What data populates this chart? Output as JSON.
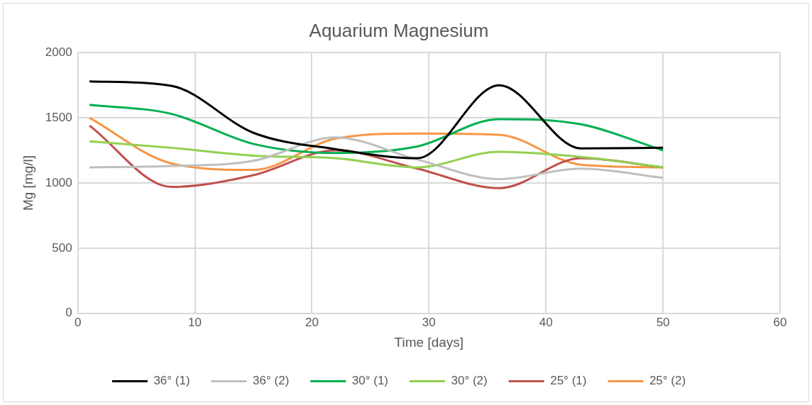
{
  "chart_data": {
    "type": "line",
    "title": "Aquarium Magnesium",
    "xlabel": "Time [days]",
    "ylabel": "Mg [mg/l]",
    "x": [
      1,
      8,
      15,
      22,
      29,
      36,
      43,
      50
    ],
    "series": [
      {
        "name": "36° (1)",
        "color": "#000000",
        "values": [
          1780,
          1745,
          1385,
          1260,
          1190,
          1750,
          1265,
          1270
        ]
      },
      {
        "name": "36° (2)",
        "color": "#bfbfbf",
        "values": [
          1120,
          1130,
          1170,
          1350,
          1180,
          1030,
          1110,
          1040
        ]
      },
      {
        "name": "30° (1)",
        "color": "#00b050",
        "values": [
          1600,
          1530,
          1300,
          1230,
          1280,
          1490,
          1450,
          1250
        ]
      },
      {
        "name": "30° (2)",
        "color": "#92d050",
        "values": [
          1320,
          1270,
          1210,
          1190,
          1120,
          1240,
          1200,
          1120
        ]
      },
      {
        "name": "25° (1)",
        "color": "#c0504d",
        "values": [
          1440,
          970,
          1060,
          1250,
          1110,
          960,
          1190,
          1120
        ]
      },
      {
        "name": "25° (2)",
        "color": "#f79646",
        "values": [
          1500,
          1150,
          1100,
          1340,
          1380,
          1370,
          1140,
          1120
        ]
      }
    ],
    "xlim": [
      0,
      60
    ],
    "xticks": [
      0,
      10,
      20,
      30,
      40,
      50,
      60
    ],
    "ylim": [
      0,
      2000
    ],
    "yticks": [
      0,
      500,
      1000,
      1500,
      2000
    ],
    "grid": true,
    "legend": "bottom",
    "marker": "none",
    "line_style": "solid"
  }
}
